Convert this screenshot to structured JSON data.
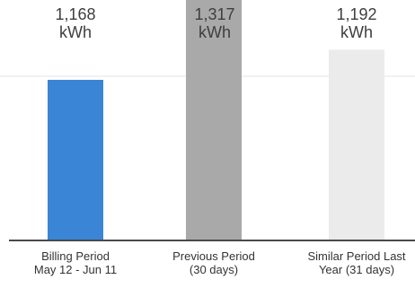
{
  "chart_data": {
    "type": "bar",
    "categories": [
      [
        "Billing Period",
        "May 12 - Jun 11"
      ],
      [
        "Previous Period",
        "(30 days)"
      ],
      [
        "Similar Period Last",
        "Year (31 days)"
      ]
    ],
    "values": [
      1168,
      1317,
      1192
    ],
    "value_labels": [
      [
        "1,168",
        "kWh"
      ],
      [
        "1,317",
        "kWh"
      ],
      [
        "1,192",
        "kWh"
      ]
    ],
    "bar_colors": [
      "#3a85d6",
      "#a9a9a9",
      "#ebebeb"
    ],
    "bar_top_color": "#8e8e8e",
    "axis_color": "#4a4a4a",
    "grid": false,
    "legend": "none",
    "unit": "kWh"
  }
}
